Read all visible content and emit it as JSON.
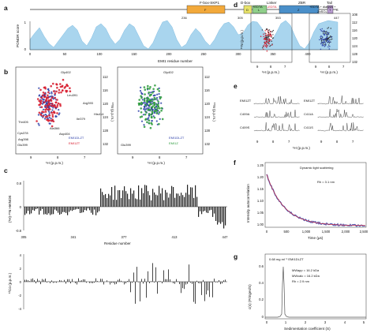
{
  "panels": {
    "a": "a",
    "b": "b",
    "c": "c",
    "d": "d",
    "e": "e",
    "f": "f",
    "g": "g"
  },
  "panel_a": {
    "ylabel": "PONDR score",
    "yticks": [
      "1",
      "0"
    ],
    "xlabel": "EMI1 residue number",
    "xticks": [
      "0",
      "50",
      "100",
      "150",
      "200",
      "250",
      "300",
      "350",
      "400"
    ],
    "domains": [
      {
        "name": "F-box-SKP1",
        "short": "F",
        "color": "#f2a93b"
      },
      {
        "name": "D-box",
        "short": "D",
        "color": "#e8e36a"
      },
      {
        "name": "Linker",
        "short": "L",
        "color": "#8fcf8a"
      },
      {
        "name": "ZBR",
        "short": "Z",
        "color": "#4a8fc9"
      },
      {
        "name": "Tail",
        "short": "T",
        "color": "#b89bd0"
      },
      {
        "name": "C",
        "short": "C",
        "color": "#ffffff"
      }
    ],
    "boundaries": [
      "236",
      "305",
      "353",
      "447"
    ],
    "fill_color": "#a9d5ee"
  },
  "panel_b": {
    "xlabel": "¹H (p.p.m.)",
    "ylabel": "¹⁵N (p.p.m.)",
    "xticks": [
      "9",
      "8",
      "7"
    ],
    "yticks": [
      "112",
      "116",
      "120",
      "124",
      "128",
      "132"
    ],
    "left_labels": [
      "Gly402",
      "Leu391",
      "Arg393",
      "His414",
      "Ile379",
      "Thr405",
      "Ala366",
      "Cys378",
      "Asp404",
      "Arg398",
      "Glu399"
    ],
    "right_labels": [
      "Gly402",
      "Glu399"
    ],
    "legend_left": [
      "EMI1DLZT",
      "EMI1ZT"
    ],
    "legend_right": [
      "EMI1DLZT",
      "EMI1Z"
    ],
    "colors": {
      "blue": "#2c3fa8",
      "red": "#d7192a",
      "green": "#2a9a3a"
    }
  },
  "panel_c": {
    "top_ylabel": "{¹H}-¹⁵N HetNOE",
    "top_yticks": [
      "0.8",
      "0",
      "-0.8"
    ],
    "xticks": [
      "305",
      "341",
      "377",
      "413",
      "447"
    ],
    "xlabel": "Residue number",
    "bottom_ylabel": "¹³Cα (p.p.m.)",
    "bottom_yticks": [
      "4",
      "2",
      "0",
      "-2",
      "-4"
    ]
  },
  "panel_d": {
    "title_left": "+EDTA",
    "title_left2": "–EDTA",
    "title_right": "+EDTA + dialysis +",
    "title_right2": "ZnSO₄",
    "ylabel": "¹⁵N (p.p.m.)",
    "xlabel": "¹H (p.p.m.)",
    "xticks": [
      "9",
      "8",
      "7"
    ],
    "yticks": [
      "108",
      "112",
      "116",
      "120",
      "124",
      "128",
      "132"
    ]
  },
  "panel_e": {
    "labels": [
      "EMI1ZT",
      "C409A",
      "C409S",
      "EMI1ZT",
      "C411A",
      "C411S"
    ],
    "xlabel": "¹H (p.p.m.)",
    "xticks": [
      "9",
      "8",
      "7"
    ]
  },
  "panel_f": {
    "title": "Dynamic light scattering",
    "rh": "Rh = 3.1 nm",
    "ylabel": "Intensity autocorrelation",
    "yticks": [
      "1.25",
      "1.20",
      "1.15",
      "1.10",
      "1.05",
      "1.00"
    ],
    "xlabel": "Time (µs)",
    "xticks": [
      "0",
      "500",
      "1,000",
      "1,500",
      "2,000",
      "2,500"
    ]
  },
  "panel_g": {
    "title": "0.68 mg ml⁻¹ EMI1DLZT",
    "stats": [
      "MWapp = 16.2 kDa",
      "MWcalc = 16.2 kDa",
      "Rh = 2.9 nm"
    ],
    "ylabel": "c(s) (Fringes/S)",
    "yticks": [
      "0.6",
      "0.4",
      "0.2",
      "0"
    ],
    "xlabel": "Sedimentation coefficient (S)",
    "xticks": [
      "0",
      "1",
      "2",
      "3",
      "4",
      "5"
    ]
  }
}
